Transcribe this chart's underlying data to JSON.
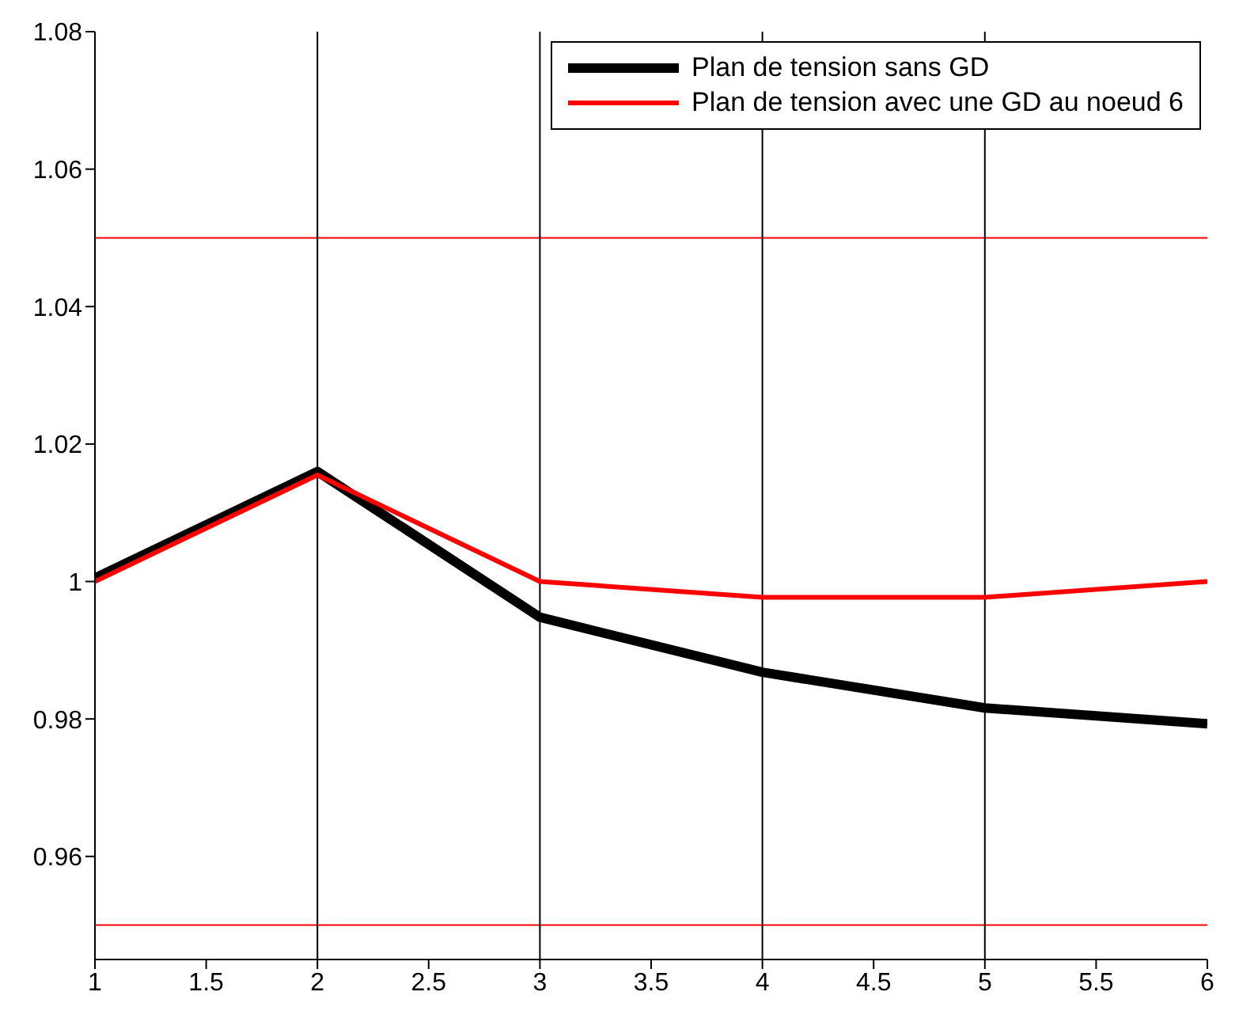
{
  "chart_data": {
    "type": "line",
    "x": [
      1,
      2,
      3,
      4,
      5,
      6
    ],
    "series": [
      {
        "name": "Plan de tension sans GD",
        "color": "#000000",
        "values": [
          1.0005,
          1.016,
          0.9948,
          0.9868,
          0.9816,
          0.9793
        ]
      },
      {
        "name": "Plan de tension avec une GD au noeud 6",
        "color": "#ff0000",
        "values": [
          1.0,
          1.0155,
          1.0,
          0.9977,
          0.9977,
          1.0
        ]
      }
    ],
    "xlim": [
      1,
      6
    ],
    "xticks": [
      1,
      1.5,
      2,
      2.5,
      3,
      3.5,
      4,
      4.5,
      5,
      5.5,
      6
    ],
    "ylim": [
      0.945,
      1.08
    ],
    "yticks": [
      0.96,
      0.98,
      1,
      1.02,
      1.04,
      1.06,
      1.08
    ],
    "ref_lines": [
      {
        "axis": "y",
        "value": 1.05,
        "color": "#ff0000"
      },
      {
        "axis": "y",
        "value": 0.95,
        "color": "#ff0000"
      },
      {
        "axis": "x",
        "value": 2,
        "color": "#000000"
      },
      {
        "axis": "x",
        "value": 3,
        "color": "#000000"
      },
      {
        "axis": "x",
        "value": 4,
        "color": "#000000"
      },
      {
        "axis": "x",
        "value": 5,
        "color": "#000000"
      }
    ],
    "legend": "top right"
  }
}
